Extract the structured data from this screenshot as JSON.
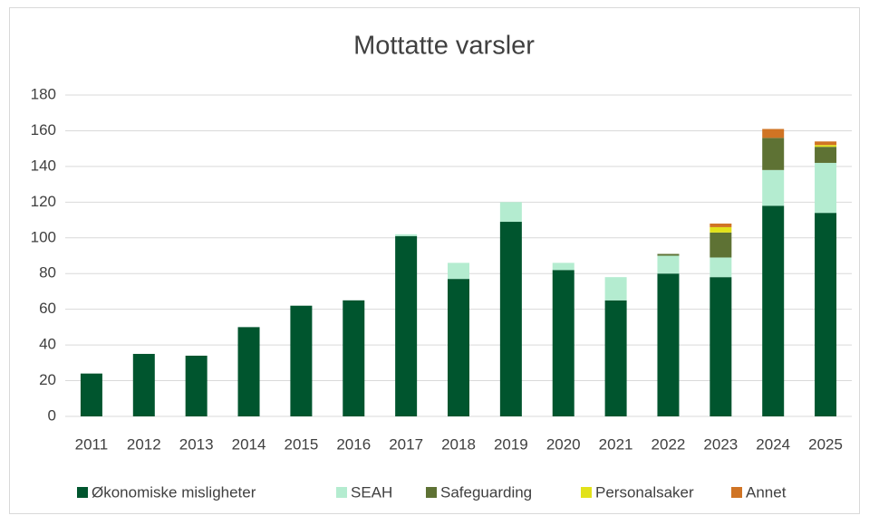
{
  "chart_data": {
    "type": "stacked_bar",
    "title": "Mottatte varsler",
    "categories": [
      "2011",
      "2012",
      "2013",
      "2014",
      "2015",
      "2016",
      "2017",
      "2018",
      "2019",
      "2020",
      "2021",
      "2022",
      "2023",
      "2024",
      "2025"
    ],
    "series": [
      {
        "name": "Økonomiske misligheter",
        "color": "#00552e",
        "values": [
          24,
          35,
          34,
          50,
          62,
          65,
          101,
          77,
          109,
          82,
          65,
          80,
          78,
          118,
          114
        ]
      },
      {
        "name": "SEAH",
        "color": "#b4ecd0",
        "values": [
          0,
          0,
          0,
          0,
          0,
          0,
          1,
          9,
          11,
          4,
          13,
          10,
          11,
          20,
          28
        ]
      },
      {
        "name": "Safeguarding",
        "color": "#5e7234",
        "values": [
          0,
          0,
          0,
          0,
          0,
          0,
          0,
          0,
          0,
          0,
          0,
          1,
          14,
          18,
          9
        ]
      },
      {
        "name": "Personalsaker",
        "color": "#e2e21a",
        "values": [
          0,
          0,
          0,
          0,
          0,
          0,
          0,
          0,
          0,
          0,
          0,
          0,
          3,
          0,
          1
        ]
      },
      {
        "name": "Annet",
        "color": "#d07424",
        "values": [
          0,
          0,
          0,
          0,
          0,
          0,
          0,
          0,
          0,
          0,
          0,
          0,
          2,
          5,
          2
        ]
      }
    ],
    "ylim": [
      0,
      180
    ],
    "yticks": [
      0,
      20,
      40,
      60,
      80,
      100,
      120,
      140,
      160,
      180
    ],
    "grid": true,
    "legend": "bottom"
  }
}
